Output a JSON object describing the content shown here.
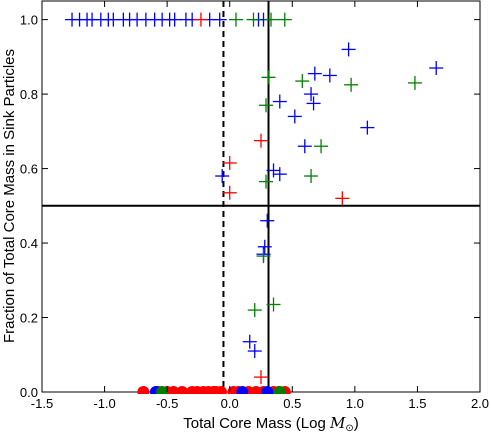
{
  "chart_data": {
    "type": "scatter",
    "xlabel_text": "Total Core Mass (Log ",
    "xlabel_unit_symbol": "M",
    "xlabel_unit_sub": "⊙",
    "xlabel_close": ")",
    "ylabel": "Fraction of Total Core Mass in Sink Particles",
    "xlim": [
      -1.5,
      2.0
    ],
    "ylim": [
      0.0,
      1.05
    ],
    "xticks": [
      -1.5,
      -1.0,
      -0.5,
      0.0,
      0.5,
      1.0,
      1.5,
      2.0
    ],
    "xtick_labels": [
      "-1.5",
      "-1.0",
      "-0.5",
      "0.0",
      "0.5",
      "1.0",
      "1.5",
      "2.0"
    ],
    "yticks": [
      0.0,
      0.2,
      0.4,
      0.6,
      0.8,
      1.0
    ],
    "ytick_labels": [
      "0.0",
      "0.2",
      "0.4",
      "0.6",
      "0.8",
      "1.0"
    ],
    "grid": false,
    "reference_lines": [
      {
        "orientation": "vertical",
        "x": -0.05,
        "style": "dashed",
        "color": "#000000"
      },
      {
        "orientation": "vertical",
        "x": 0.31,
        "style": "solid",
        "color": "#000000"
      },
      {
        "orientation": "horizontal",
        "y": 0.5,
        "style": "solid",
        "color": "#000000"
      }
    ],
    "series": [
      {
        "color": "#0000ff",
        "marker": "plus",
        "points": [
          [
            -1.26,
            1.0
          ],
          [
            -1.2,
            1.0
          ],
          [
            -1.14,
            1.0
          ],
          [
            -1.1,
            1.0
          ],
          [
            -1.03,
            1.0
          ],
          [
            -0.97,
            1.0
          ],
          [
            -0.93,
            1.0
          ],
          [
            -0.85,
            1.0
          ],
          [
            -0.8,
            1.0
          ],
          [
            -0.74,
            1.0
          ],
          [
            -0.67,
            1.0
          ],
          [
            -0.6,
            1.0
          ],
          [
            -0.54,
            1.0
          ],
          [
            -0.48,
            1.0
          ],
          [
            -0.44,
            1.0
          ],
          [
            -0.35,
            1.0
          ],
          [
            -0.3,
            1.0
          ],
          [
            -0.16,
            1.0
          ],
          [
            -0.08,
            1.0
          ],
          [
            0.23,
            1.0
          ],
          [
            0.27,
            1.0
          ],
          [
            0.95,
            0.92
          ],
          [
            1.65,
            0.87
          ],
          [
            0.68,
            0.855
          ],
          [
            0.8,
            0.85
          ],
          [
            0.65,
            0.8
          ],
          [
            0.67,
            0.775
          ],
          [
            0.4,
            0.78
          ],
          [
            0.52,
            0.74
          ],
          [
            1.1,
            0.71
          ],
          [
            0.6,
            0.66
          ],
          [
            0.35,
            0.595
          ],
          [
            0.4,
            0.585
          ],
          [
            -0.06,
            0.58
          ],
          [
            0.3,
            0.46
          ],
          [
            0.28,
            0.39
          ],
          [
            0.27,
            0.37
          ],
          [
            0.16,
            0.135
          ],
          [
            0.2,
            0.11
          ]
        ]
      },
      {
        "color": "#008000",
        "marker": "plus",
        "points": [
          [
            0.05,
            1.0
          ],
          [
            0.19,
            1.0
          ],
          [
            0.33,
            1.0
          ],
          [
            0.44,
            1.0
          ],
          [
            0.31,
            0.845
          ],
          [
            0.58,
            0.835
          ],
          [
            0.97,
            0.825
          ],
          [
            1.48,
            0.83
          ],
          [
            0.29,
            0.77
          ],
          [
            0.73,
            0.66
          ],
          [
            0.65,
            0.58
          ],
          [
            0.29,
            0.565
          ],
          [
            0.27,
            0.365
          ],
          [
            0.35,
            0.235
          ],
          [
            0.2,
            0.22
          ]
        ]
      },
      {
        "color": "#ff0000",
        "marker": "plus",
        "points": [
          [
            -0.23,
            1.0
          ],
          [
            0.25,
            0.675
          ],
          [
            0.0,
            0.615
          ],
          [
            0.0,
            0.535
          ],
          [
            0.9,
            0.52
          ],
          [
            0.25,
            0.04
          ]
        ]
      },
      {
        "color": "#ff0000",
        "marker": "circle",
        "points": [
          [
            -0.69,
            0.0
          ],
          [
            -0.57,
            0.0
          ],
          [
            -0.5,
            0.0
          ],
          [
            -0.45,
            0.0
          ],
          [
            -0.38,
            0.0
          ],
          [
            -0.3,
            0.0
          ],
          [
            -0.26,
            0.0
          ],
          [
            -0.21,
            0.0
          ],
          [
            -0.17,
            0.0
          ],
          [
            -0.13,
            0.0
          ],
          [
            -0.11,
            0.0
          ],
          [
            -0.07,
            0.0
          ],
          [
            0.03,
            0.0
          ],
          [
            0.07,
            0.0
          ],
          [
            0.15,
            0.0
          ],
          [
            0.21,
            0.0
          ],
          [
            0.27,
            0.0
          ],
          [
            0.35,
            0.0
          ],
          [
            0.39,
            0.0
          ],
          [
            0.44,
            0.0
          ]
        ]
      },
      {
        "color": "#0000ff",
        "marker": "circle",
        "points": [
          [
            -0.59,
            0.0
          ],
          [
            0.1,
            0.0
          ],
          [
            0.3,
            0.0
          ]
        ]
      },
      {
        "color": "#008000",
        "marker": "circle",
        "points": [
          [
            -0.54,
            0.0
          ],
          [
            0.4,
            0.0
          ]
        ]
      }
    ]
  }
}
